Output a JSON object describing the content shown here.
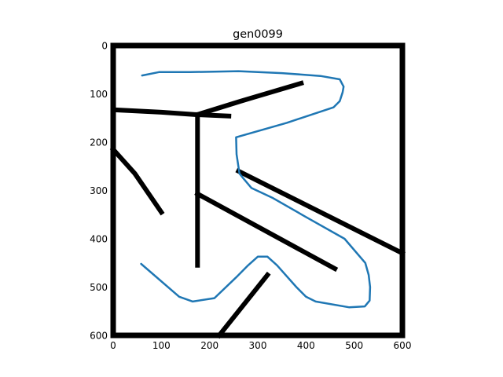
{
  "chart_data": {
    "type": "line",
    "title": "gen0099",
    "xlabel": "",
    "ylabel": "",
    "xlim": [
      0,
      600
    ],
    "ylim": [
      600,
      0
    ],
    "y_inverted": true,
    "grid": false,
    "legend": "none",
    "x_ticks": [
      0,
      100,
      200,
      300,
      400,
      500,
      600
    ],
    "y_ticks": [
      0,
      100,
      200,
      300,
      400,
      500,
      600
    ],
    "x_tick_labels": [
      "0",
      "100",
      "200",
      "300",
      "400",
      "500",
      "600"
    ],
    "y_tick_labels": [
      "0",
      "100",
      "200",
      "300",
      "400",
      "500",
      "600"
    ],
    "walls": [
      {
        "points": [
          [
            0,
            0
          ],
          [
            600,
            0
          ],
          [
            600,
            600
          ],
          [
            0,
            600
          ],
          [
            0,
            0
          ]
        ]
      },
      {
        "points": [
          [
            0,
            133
          ],
          [
            100,
            138
          ],
          [
            170,
            143
          ],
          [
            240,
            146
          ]
        ]
      },
      {
        "points": [
          [
            175,
            143
          ],
          [
            175,
            455
          ]
        ]
      },
      {
        "points": [
          [
            175,
            143
          ],
          [
            265,
            115
          ],
          [
            390,
            78
          ]
        ]
      },
      {
        "points": [
          [
            0,
            215
          ],
          [
            45,
            265
          ],
          [
            100,
            345
          ]
        ]
      },
      {
        "points": [
          [
            260,
            260
          ],
          [
            600,
            430
          ]
        ]
      },
      {
        "points": [
          [
            175,
            307
          ],
          [
            460,
            462
          ]
        ]
      },
      {
        "points": [
          [
            220,
            600
          ],
          [
            320,
            475
          ]
        ]
      }
    ],
    "series": [
      {
        "color": "#1f77b4",
        "x": [
          60,
          95,
          160,
          260,
          350,
          430,
          470,
          478,
          476,
          470,
          457,
          360,
          255,
          256,
          262,
          270,
          287,
          330,
          400,
          480,
          523,
          530,
          533,
          532,
          522,
          490,
          420,
          400,
          380,
          340,
          320,
          300,
          280,
          255,
          210,
          165,
          137,
          58
        ],
        "y": [
          62,
          55,
          55,
          53,
          57,
          63,
          70,
          85,
          97,
          115,
          128,
          160,
          190,
          225,
          265,
          275,
          295,
          315,
          355,
          400,
          450,
          475,
          500,
          528,
          540,
          542,
          530,
          520,
          500,
          455,
          437,
          437,
          455,
          480,
          523,
          530,
          520,
          452
        ]
      }
    ]
  }
}
